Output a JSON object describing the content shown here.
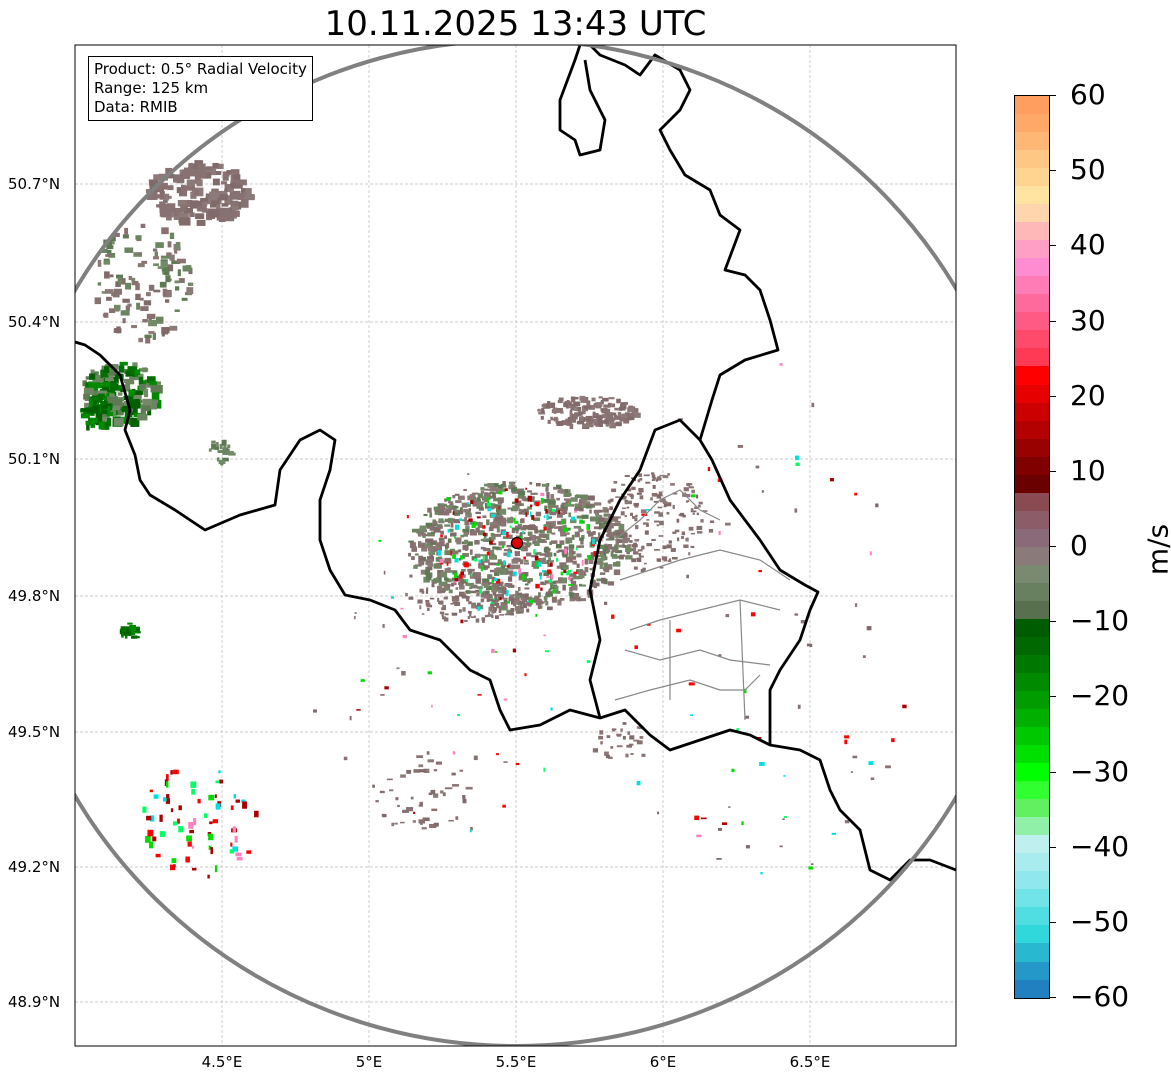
{
  "title": "10.11.2025 13:43 UTC",
  "info_box": [
    "Product: 0.5° Radial Velocity",
    "Range: 125 km",
    "Data: RMIB"
  ],
  "lat_ticks": [
    "50.7°N",
    "50.4°N",
    "50.1°N",
    "49.8°N",
    "49.5°N",
    "49.2°N",
    "48.9°N"
  ],
  "lon_ticks": [
    "4.5°E",
    "5°E",
    "5.5°E",
    "6°E",
    "6.5°E"
  ],
  "colorbar": {
    "unit": "m/s",
    "range": [
      -60,
      60
    ],
    "labels": [
      "60",
      "50",
      "40",
      "30",
      "20",
      "10",
      "0",
      "−10",
      "−20",
      "−30",
      "−40",
      "−50",
      "−60"
    ],
    "colors_top_to_bottom": [
      "#ff9e5e",
      "#ffa868",
      "#ffb775",
      "#ffc684",
      "#ffd490",
      "#ffe3a0",
      "#ffd5ae",
      "#ffb8b8",
      "#ff9fc6",
      "#ff8cd0",
      "#ff7cb6",
      "#ff6a9c",
      "#ff5a84",
      "#ff4a6c",
      "#ff3a55",
      "#ff0000",
      "#e60000",
      "#cc0000",
      "#b30000",
      "#990000",
      "#800000",
      "#6a0000",
      "#8a4a52",
      "#8c5c68",
      "#8a6a78",
      "#8a7a7a",
      "#7a8a70",
      "#688060",
      "#58704e",
      "#005c00",
      "#006800",
      "#007800",
      "#008a00",
      "#009c00",
      "#00b000",
      "#00c800",
      "#00e000",
      "#00ff00",
      "#30ff30",
      "#60f060",
      "#90f0a8",
      "#bff0f0",
      "#a8ecef",
      "#90e8ec",
      "#70e4e8",
      "#50dee2",
      "#30d8dc",
      "#28b8d0",
      "#2498c8",
      "#2080c0"
    ]
  },
  "station": {
    "lon": 5.5,
    "lat": 49.91,
    "color": "#e00000"
  },
  "range_ring_color": "#808080"
}
